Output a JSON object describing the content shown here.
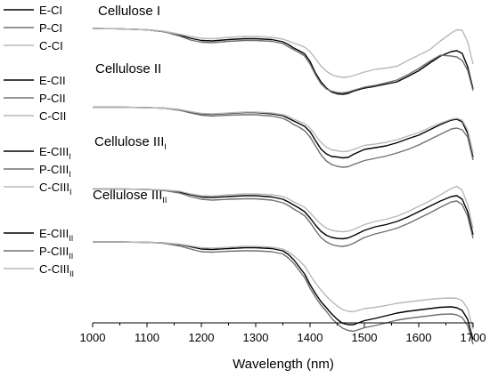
{
  "chart_data": {
    "type": "line",
    "xlabel": "Wavelength (nm)",
    "ylabel": "",
    "xlim": [
      1000,
      1700
    ],
    "x_ticks": [
      1000,
      1100,
      1200,
      1300,
      1400,
      1500,
      1600,
      1700
    ],
    "x_tick_labels": [
      "1000",
      "1100",
      "1200",
      "1300",
      "1400",
      "1500",
      "1600",
      "1700"
    ],
    "y_ticks_shown": false,
    "grid": false,
    "legend_position": "left",
    "colors": {
      "E": "#000000",
      "P": "#707070",
      "C": "#b8b8b8"
    },
    "groups": [
      {
        "title": "Cellulose I",
        "title_sub": "",
        "legend": [
          {
            "name": "E-CI",
            "sub": ""
          },
          {
            "name": "P-CI",
            "sub": ""
          },
          {
            "name": "C-CI",
            "sub": ""
          }
        ]
      },
      {
        "title": "Cellulose II",
        "title_sub": "",
        "legend": [
          {
            "name": "E-CII",
            "sub": ""
          },
          {
            "name": "P-CII",
            "sub": ""
          },
          {
            "name": "C-CII",
            "sub": ""
          }
        ]
      },
      {
        "title": "Cellulose III",
        "title_sub": "I",
        "legend": [
          {
            "name": "E-CIII",
            "sub": "I"
          },
          {
            "name": "P-CIII",
            "sub": "I"
          },
          {
            "name": "C-CIII",
            "sub": "I"
          }
        ]
      },
      {
        "title": "Cellulose III",
        "title_sub": "II",
        "legend": [
          {
            "name": "E-CIII",
            "sub": "II"
          },
          {
            "name": "P-CIII",
            "sub": "II"
          },
          {
            "name": "C-CIII",
            "sub": "II"
          }
        ]
      }
    ],
    "x": [
      1000,
      1050,
      1100,
      1130,
      1160,
      1180,
      1200,
      1220,
      1250,
      1280,
      1300,
      1330,
      1350,
      1360,
      1370,
      1380,
      1390,
      1400,
      1410,
      1420,
      1430,
      1440,
      1450,
      1460,
      1470,
      1480,
      1500,
      1520,
      1540,
      1560,
      1580,
      1600,
      1620,
      1640,
      1660,
      1670,
      1680,
      1690,
      1700
    ],
    "series": [
      {
        "group": 0,
        "name": "E-CI",
        "values": [
          0,
          0.4,
          1.5,
          3.5,
          7.5,
          11,
          13.5,
          14,
          12.5,
          11.5,
          11.5,
          12.5,
          15,
          18,
          22,
          25,
          28.5,
          37,
          50,
          60,
          67,
          71.5,
          73.5,
          74,
          73,
          70.5,
          67,
          65,
          62.5,
          60,
          54,
          47.5,
          39,
          31,
          26,
          25,
          28,
          43,
          68
        ]
      },
      {
        "group": 0,
        "name": "P-CI",
        "values": [
          0,
          0.4,
          1.5,
          3.5,
          8.5,
          13,
          15.5,
          16,
          14.5,
          13.5,
          13.5,
          14.5,
          17,
          20.5,
          24,
          27,
          31,
          40,
          52,
          62,
          68,
          70.5,
          72,
          72.5,
          71.5,
          69.5,
          66,
          64,
          61,
          58,
          52,
          45,
          37,
          30,
          31,
          32,
          36,
          47,
          70
        ]
      },
      {
        "group": 0,
        "name": "C-CI",
        "values": [
          0,
          0.4,
          1.5,
          3,
          6.5,
          9,
          11,
          11.5,
          10,
          9,
          9,
          10,
          12,
          14,
          16.5,
          18.5,
          21,
          26,
          34,
          42,
          48,
          52,
          54,
          55,
          54.5,
          53,
          49,
          46,
          44.5,
          42.5,
          36,
          30,
          24,
          14,
          5,
          1.5,
          2,
          15,
          40
        ]
      },
      {
        "group": 1,
        "name": "E-CII",
        "values": [
          88.5,
          88.5,
          89,
          89.5,
          91.5,
          94,
          96,
          96.5,
          95.5,
          94.5,
          94.5,
          96,
          98,
          101,
          104,
          107,
          110,
          116,
          126,
          135.5,
          141,
          144,
          144.5,
          145.5,
          145,
          141.5,
          136,
          134,
          132,
          128.5,
          124,
          120,
          114,
          108,
          103,
          102,
          105,
          118,
          145
        ]
      },
      {
        "group": 1,
        "name": "P-CII",
        "values": [
          88.5,
          88.5,
          89,
          89.5,
          92,
          95,
          97.5,
          98.5,
          97.5,
          97,
          97,
          98.5,
          101,
          104,
          108,
          111,
          115,
          122,
          132,
          142,
          149,
          153,
          155,
          156,
          155.5,
          153,
          148.5,
          146,
          143.5,
          140,
          136,
          131,
          125,
          119,
          113,
          112,
          114,
          122,
          148
        ]
      },
      {
        "group": 1,
        "name": "C-CII",
        "values": [
          88.5,
          88.5,
          89,
          89.5,
          91,
          93.5,
          95.5,
          96,
          95,
          94,
          94,
          95,
          97,
          99,
          102,
          104.5,
          107,
          112,
          120,
          128,
          133.5,
          136.5,
          137.5,
          138.5,
          138,
          136,
          131.5,
          130,
          128,
          125,
          121,
          117,
          111.5,
          106.5,
          102,
          101,
          103,
          114,
          140
        ]
      },
      {
        "group": 2,
        "name": "E-CIII_I",
        "values": [
          180.5,
          180.5,
          181,
          182,
          184,
          187,
          189.5,
          190,
          189,
          188,
          188,
          189.5,
          192,
          195,
          198.5,
          202,
          206,
          213,
          221,
          228,
          232.5,
          235,
          236,
          236.5,
          235.5,
          233,
          227,
          223,
          220.5,
          217,
          212,
          206,
          200,
          194,
          189,
          188,
          192,
          206,
          232
        ]
      },
      {
        "group": 2,
        "name": "P-CIII_I",
        "values": [
          180.5,
          180.5,
          181,
          182,
          185,
          189,
          192,
          193,
          192,
          191.5,
          191.5,
          193,
          196,
          199,
          203,
          206.5,
          210.5,
          218,
          227,
          235,
          240,
          243,
          244.5,
          245,
          244,
          241.5,
          235,
          231,
          228,
          224.5,
          219.5,
          213.5,
          207.5,
          201,
          195,
          194,
          198,
          211,
          236
        ]
      },
      {
        "group": 2,
        "name": "C-CIII_I",
        "values": [
          180.5,
          180.5,
          181,
          181.5,
          183,
          186,
          188,
          188.5,
          187,
          186,
          186,
          187,
          189,
          191.5,
          195,
          198,
          201,
          207,
          214,
          220,
          224.5,
          227,
          228,
          228.5,
          228,
          226,
          220.5,
          217,
          214.5,
          211,
          206,
          200,
          194,
          187,
          180,
          177.5,
          182,
          198,
          225
        ]
      },
      {
        "group": 3,
        "name": "E-CIII_II",
        "values": [
          240,
          240,
          240.5,
          241,
          243,
          245.5,
          248,
          248.5,
          247.5,
          246.5,
          246.5,
          247.5,
          250,
          254,
          260,
          268,
          276,
          288,
          298,
          307,
          314,
          321,
          327,
          331.5,
          333,
          333,
          328.5,
          326,
          323,
          320,
          318,
          316.5,
          315,
          313.5,
          313,
          314,
          317,
          327,
          350
        ]
      },
      {
        "group": 3,
        "name": "P-CIII_II",
        "values": [
          240,
          240,
          240.5,
          241.5,
          244.5,
          248,
          251,
          251.5,
          250.5,
          250,
          250,
          251,
          253.5,
          258,
          264,
          272,
          280,
          292,
          302,
          311,
          318,
          326,
          332,
          337,
          339.5,
          340.5,
          336.5,
          334,
          331,
          328,
          326,
          324.5,
          323,
          321.5,
          321,
          322,
          325,
          334,
          355
        ]
      },
      {
        "group": 3,
        "name": "C-CIII_II",
        "values": [
          240,
          240,
          240.5,
          241,
          242.5,
          244.5,
          246.5,
          247,
          246,
          245,
          245,
          246,
          248,
          251,
          255.5,
          261,
          267,
          277,
          286,
          294,
          301,
          307,
          312,
          316,
          318,
          318.5,
          315,
          313.5,
          311.5,
          309,
          307.5,
          306,
          304.5,
          303.5,
          303,
          303.5,
          306,
          315,
          338
        ]
      }
    ]
  }
}
